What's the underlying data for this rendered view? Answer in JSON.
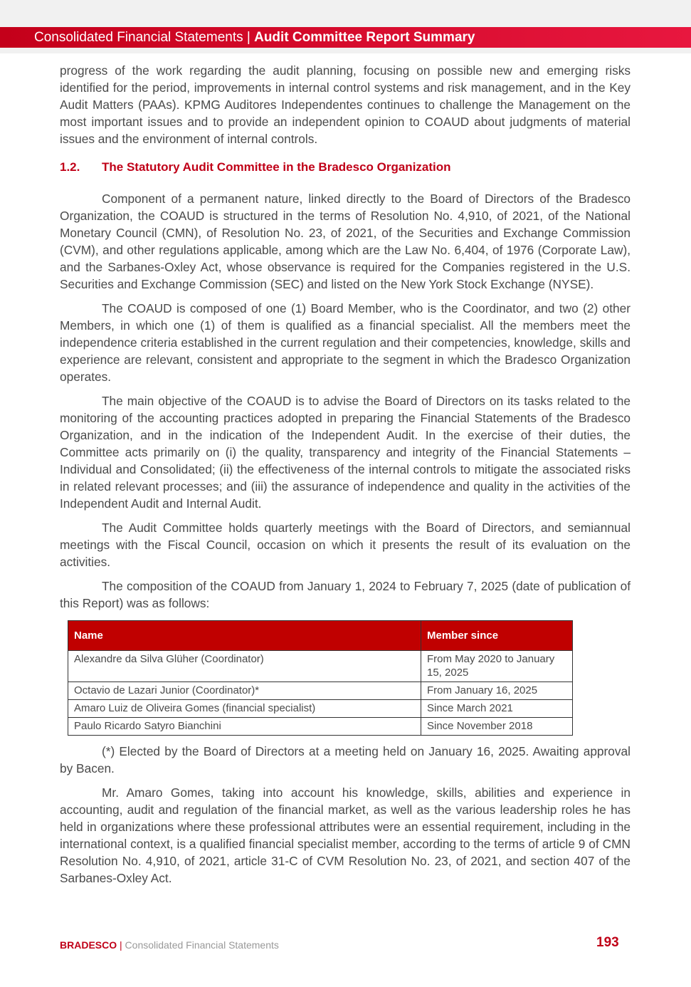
{
  "header": {
    "section": "Consolidated Financial Statements",
    "separator": "|",
    "title": "Audit Committee Report Summary"
  },
  "paragraphs_top": [
    "progress of the work regarding the audit planning, focusing on possible new and emerging risks identified for the period, improvements in internal control systems and risk management, and in the Key Audit Matters (PAAs). KPMG Auditores Independentes continues to challenge the Management on the most important issues and to provide an independent opinion to COAUD about judgments of material issues and the environment of internal controls."
  ],
  "heading": {
    "number": "1.2.",
    "text": "The Statutory Audit Committee in the Bradesco Organization"
  },
  "paragraphs": [
    "Component of a permanent nature, linked directly to the Board of Directors of the Bradesco Organization, the COAUD is structured in the terms of Resolution No. 4,910, of 2021, of the National Monetary Council (CMN), of Resolution No. 23, of 2021, of the Securities and Exchange Commission (CVM), and other regulations applicable, among which are the Law No. 6,404, of 1976 (Corporate Law), and the Sarbanes-Oxley Act, whose observance is required for the Companies registered in the U.S. Securities and Exchange Commission (SEC) and listed on the New York Stock Exchange (NYSE).",
    "The COAUD is composed of one (1) Board Member, who is the Coordinator, and two (2) other Members, in which one (1) of them is qualified as a financial specialist. All the members meet the independence criteria established in the current regulation and their competencies, knowledge, skills and experience are relevant, consistent and appropriate to the segment in which the Bradesco Organization operates.",
    "The main objective of the COAUD is to advise the Board of Directors on its tasks related to the monitoring of the accounting practices adopted in preparing the Financial Statements of the Bradesco Organization, and in the indication of the Independent Audit. In the exercise of their duties, the Committee acts primarily on (i) the quality, transparency and integrity of the Financial Statements – Individual and Consolidated; (ii) the effectiveness of the internal controls to mitigate the associated risks in related relevant processes; and (iii) the assurance of independence and quality in the activities of the Independent Audit and Internal Audit.",
    "The Audit Committee holds quarterly meetings with the Board of Directors, and semiannual meetings with the Fiscal Council, occasion on which it presents the result of its evaluation on the activities.",
    "The composition of the COAUD from January 1, 2024 to February 7, 2025 (date of publication of this Report) was as follows:"
  ],
  "table": {
    "headers": [
      "Name",
      "Member since"
    ],
    "rows": [
      [
        "Alexandre da Silva Glüher (Coordinator)",
        "From May 2020 to January 15, 2025"
      ],
      [
        "Octavio de Lazari Junior (Coordinator)*",
        "From January 16, 2025"
      ],
      [
        "Amaro Luiz de Oliveira Gomes (financial specialist)",
        "Since March 2021"
      ],
      [
        "Paulo Ricardo Satyro Bianchini",
        "Since November 2018"
      ]
    ]
  },
  "paragraphs_after": [
    "(*) Elected by the Board of Directors at a meeting held on January 16, 2025. Awaiting approval by Bacen.",
    "Mr. Amaro Gomes, taking into account his knowledge, skills, abilities and experience in accounting, audit and regulation of the financial market, as well as the various leadership roles he has held in organizations where these professional attributes were an essential requirement, including in the international context, is a qualified financial specialist member, according to the terms of article 9 of CMN Resolution No. 4,910, of 2021, article 31-C of CVM Resolution No. 23, of 2021, and section 407 of the Sarbanes-Oxley Act."
  ],
  "footer": {
    "brand": "BRADESCO",
    "separator": "|",
    "text": "Consolidated Financial Statements",
    "page": "193"
  },
  "colors": {
    "brand_red": "#c00018",
    "table_header": "#c00000"
  }
}
